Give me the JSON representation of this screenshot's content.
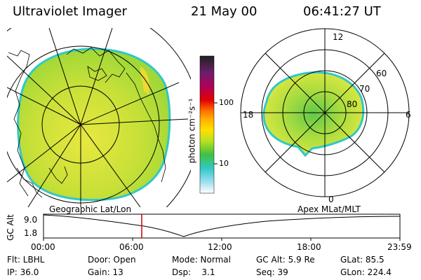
{
  "header": {
    "title": "Ultraviolet Imager",
    "date": "21 May 00",
    "time": "06:41:27 UT"
  },
  "colorbar": {
    "label": "photon cm⁻²s⁻¹",
    "ticks": [
      "100",
      "10"
    ],
    "colors": [
      "#202020",
      "#6a1f6a",
      "#b0005a",
      "#e00000",
      "#ff7000",
      "#ffb000",
      "#ffe000",
      "#b8e020",
      "#40c040",
      "#30c8c8",
      "#a0e0f0",
      "#ffffff"
    ]
  },
  "polar_plot": {
    "mlt_labels": {
      "top": "12",
      "left": "18",
      "right": "6",
      "bottom": "0"
    },
    "lat_labels": [
      "60",
      "70",
      "80"
    ]
  },
  "timeline": {
    "left_title": "Geographic Lat/Lon",
    "right_title": "Apex MLat/MLT",
    "axis_label": "GC Alt",
    "y_ticks": [
      "9.0",
      "1.8"
    ],
    "x_ticks": [
      "00:00",
      "06:00",
      "12:00",
      "18:00",
      "23:59"
    ],
    "current_time_color": "#cc0000"
  },
  "info": {
    "row1": [
      {
        "label": "Flt: LBHL"
      },
      {
        "label": "Door: Open"
      },
      {
        "label": "Mode: Normal"
      },
      {
        "label": "GC Alt: 5.9 Re"
      },
      {
        "label": "GLat: 85.5"
      }
    ],
    "row2": [
      {
        "label": "IP: 36.0"
      },
      {
        "label": "Gain: 13"
      },
      {
        "label": "Dsp:    3.1"
      },
      {
        "label": "Seq: 39"
      },
      {
        "label": "GLon: 224.4"
      }
    ]
  }
}
